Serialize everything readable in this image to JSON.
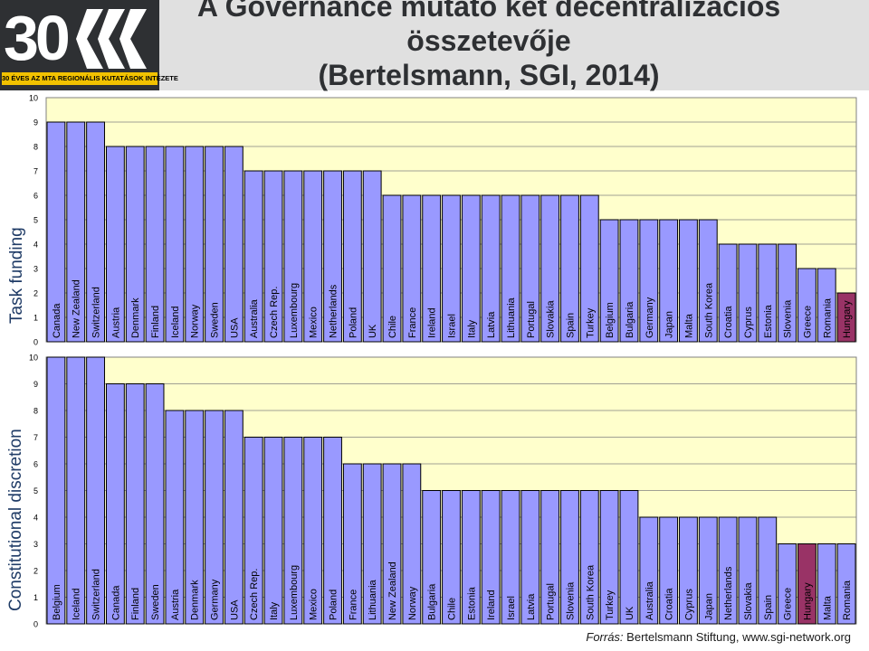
{
  "header": {
    "title_lines": [
      "A Governance mutató két decentralizációs",
      "összetevője",
      "(Bertelsmann, SGI, 2014)"
    ],
    "logo_number": "30",
    "logo_caption": "30 ÉVES AZ MTA REGIONÁLIS KUTATÁSOK INTÉZETE"
  },
  "footer": {
    "source_label": "Forrás:",
    "source_text": "Bertelsmann Stiftung, www.sgi-network.org"
  },
  "colors": {
    "bar": "#9999ff",
    "bar_highlight": "#993366",
    "plot_bg": "#ffffcc",
    "grid": "#808080"
  },
  "chart_data": [
    {
      "type": "bar",
      "ylabel": "Task funding",
      "ylim": [
        0,
        10
      ],
      "yticks": [
        0,
        1,
        2,
        3,
        4,
        5,
        6,
        7,
        8,
        9,
        10
      ],
      "grid": true,
      "highlight": "Hungary",
      "categories": [
        "Canada",
        "New Zealand",
        "Switzerland",
        "Austria",
        "Denmark",
        "Finland",
        "Iceland",
        "Norway",
        "Sweden",
        "USA",
        "Australia",
        "Czech Rep.",
        "Luxembourg",
        "Mexico",
        "Netherlands",
        "Poland",
        "UK",
        "Chile",
        "France",
        "Ireland",
        "Israel",
        "Italy",
        "Latvia",
        "Lithuania",
        "Portugal",
        "Slovakia",
        "Spain",
        "Turkey",
        "Belgium",
        "Bulgaria",
        "Germany",
        "Japan",
        "Malta",
        "South Korea",
        "Croatia",
        "Cyprus",
        "Estonia",
        "Slovenia",
        "Greece",
        "Romania",
        "Hungary"
      ],
      "values": [
        9,
        9,
        9,
        8,
        8,
        8,
        8,
        8,
        8,
        8,
        7,
        7,
        7,
        7,
        7,
        7,
        7,
        6,
        6,
        6,
        6,
        6,
        6,
        6,
        6,
        6,
        6,
        6,
        5,
        5,
        5,
        5,
        5,
        5,
        4,
        4,
        4,
        4,
        3,
        3,
        2
      ]
    },
    {
      "type": "bar",
      "ylabel": "Constitutional discretion",
      "ylim": [
        0,
        10
      ],
      "yticks": [
        0,
        1,
        2,
        3,
        4,
        5,
        6,
        7,
        8,
        9,
        10
      ],
      "grid": true,
      "highlight": "Hungary",
      "categories": [
        "Belgium",
        "Iceland",
        "Switzerland",
        "Canada",
        "Finland",
        "Sweden",
        "Austria",
        "Denmark",
        "Germany",
        "USA",
        "Czech Rep.",
        "Italy",
        "Luxembourg",
        "Mexico",
        "Poland",
        "France",
        "Lithuania",
        "New Zealand",
        "Norway",
        "Bulgaria",
        "Chile",
        "Estonia",
        "Ireland",
        "Israel",
        "Latvia",
        "Portugal",
        "Slovenia",
        "South Korea",
        "Turkey",
        "UK",
        "Australia",
        "Croatia",
        "Cyprus",
        "Japan",
        "Netherlands",
        "Slovakia",
        "Spain",
        "Greece",
        "Hungary",
        "Malta",
        "Romania"
      ],
      "values": [
        10,
        10,
        10,
        9,
        9,
        9,
        8,
        8,
        8,
        8,
        7,
        7,
        7,
        7,
        7,
        6,
        6,
        6,
        6,
        5,
        5,
        5,
        5,
        5,
        5,
        5,
        5,
        5,
        5,
        5,
        4,
        4,
        4,
        4,
        4,
        4,
        4,
        3,
        3,
        3,
        3
      ]
    }
  ]
}
